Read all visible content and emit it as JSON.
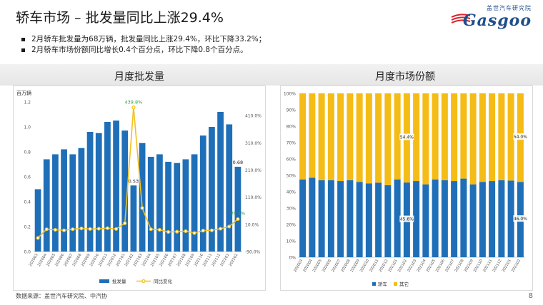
{
  "title": "轿车市场 – 批发量同比上涨29.4%",
  "logo": {
    "cn": "盖世汽车研究院",
    "en": "Gasgoo"
  },
  "bullets": [
    "2月轿车批发量为68万辆，批发量同比上涨29.4%，环比下降33.2%；",
    "2月轿车市场份额同比增长0.4个百分点，环比下降0.8个百分点。"
  ],
  "left_title": "月度批发量",
  "right_title": "月度市场份额",
  "footer": "数据来源：盖世汽车研究院、中汽协",
  "page_number": "8",
  "colors": {
    "bar": "#1f6fb8",
    "line": "#f2c01f",
    "other": "#f5bc17",
    "peak_label": "#2e9e3e"
  },
  "chart_data": [
    {
      "type": "bar",
      "ylabel": "百万辆",
      "categories": [
        "202003",
        "202004",
        "202005",
        "202006",
        "202007",
        "202008",
        "202009",
        "202010",
        "202011",
        "202012",
        "202101",
        "202102",
        "202103",
        "202104",
        "202105",
        "202106",
        "202107",
        "202108",
        "202109",
        "202110",
        "202111",
        "202112",
        "202201",
        "202202"
      ],
      "ylim": [
        0,
        1.2
      ],
      "yticks": [
        "0.0",
        "0.2",
        "0.4",
        "0.6",
        "0.8",
        "1.0",
        "1.2"
      ],
      "y2ticks": [
        "-90.0%",
        "10.0%",
        "110.0%",
        "210.0%",
        "310.0%",
        "410.0%"
      ],
      "y2lim": [
        -90,
        460
      ],
      "series": [
        {
          "name": "批发量",
          "values": [
            0.5,
            0.74,
            0.78,
            0.82,
            0.78,
            0.83,
            0.96,
            0.95,
            1.04,
            1.05,
            0.97,
            0.53,
            0.87,
            0.76,
            0.78,
            0.72,
            0.71,
            0.74,
            0.78,
            0.93,
            1.0,
            1.12,
            1.02,
            0.68
          ]
        },
        {
          "name": "同比变化",
          "values": [
            -40,
            -8,
            -10,
            -12,
            -8,
            -5,
            -7,
            -6,
            -4,
            -7,
            14,
            439.8,
            70,
            -8,
            -10,
            -18,
            -17,
            -15,
            -22,
            -13,
            -12,
            -6,
            2,
            29.4
          ]
        }
      ],
      "data_labels": [
        {
          "category": "202102",
          "series": "批发量",
          "text": "0.53"
        },
        {
          "category": "202202",
          "series": "批发量",
          "text": "0.68"
        },
        {
          "category": "202102",
          "series": "同比变化",
          "text": "439.8%"
        },
        {
          "category": "202202",
          "series": "同比变化",
          "text": "29.4%"
        }
      ]
    },
    {
      "type": "bar",
      "stacked": true,
      "categories": [
        "202003",
        "202004",
        "202005",
        "202006",
        "202007",
        "202008",
        "202009",
        "202010",
        "202011",
        "202012",
        "202101",
        "202102",
        "202103",
        "202104",
        "202105",
        "202106",
        "202107",
        "202108",
        "202109",
        "202110",
        "202111",
        "202112",
        "202201",
        "202202"
      ],
      "ylim": [
        0,
        100
      ],
      "yticks": [
        "0%",
        "10%",
        "20%",
        "30%",
        "40%",
        "50%",
        "60%",
        "70%",
        "80%",
        "90%",
        "100%"
      ],
      "series": [
        {
          "name": "轿车",
          "values": [
            47.5,
            48.5,
            47,
            47,
            46.5,
            47,
            46,
            45,
            45.5,
            44,
            47.5,
            45.6,
            46.5,
            44.5,
            47.5,
            47,
            46.5,
            48,
            44.5,
            46,
            46.5,
            47,
            46.8,
            46.0
          ]
        },
        {
          "name": "其它",
          "values": [
            52.5,
            51.5,
            53,
            53,
            53.5,
            53,
            54,
            55,
            54.5,
            56,
            52.5,
            54.4,
            53.5,
            55.5,
            52.5,
            53,
            53.5,
            52,
            55.5,
            54,
            53.5,
            53,
            53.2,
            54.0
          ]
        }
      ],
      "data_labels": [
        {
          "category": "202102",
          "series": "轿车",
          "text": "45.6%"
        },
        {
          "category": "202102",
          "series": "其它",
          "text": "54.4%"
        },
        {
          "category": "202202",
          "series": "轿车",
          "text": "46.0%"
        },
        {
          "category": "202202",
          "series": "其它",
          "text": "54.0%"
        }
      ]
    }
  ]
}
